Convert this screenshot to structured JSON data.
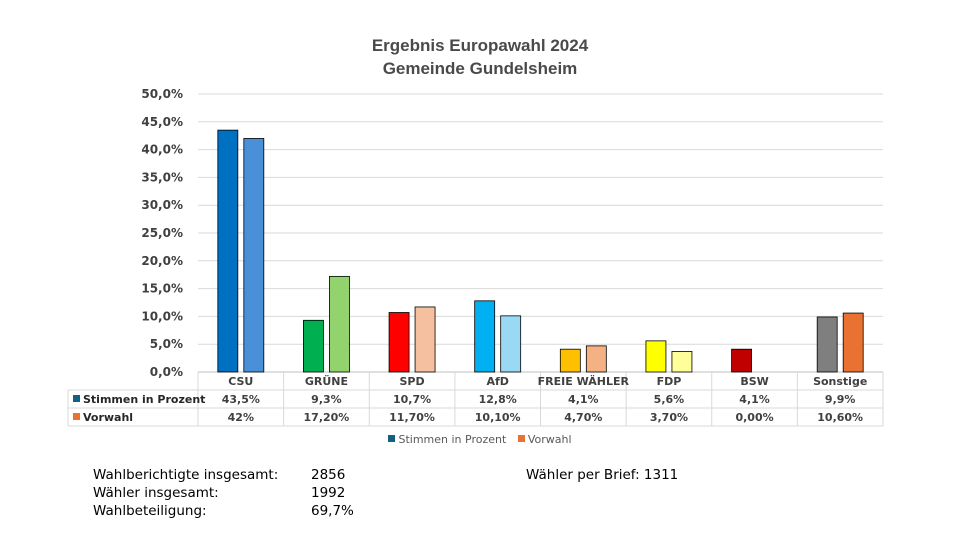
{
  "chart_data": {
    "type": "bar",
    "title": "Ergebnis Europawahl 2024",
    "subtitle": "Gemeinde Gundelsheim",
    "categories": [
      "CSU",
      "GRÜNE",
      "SPD",
      "AfD",
      "FREIE WÄHLER",
      "FDP",
      "BSW",
      "Sonstige"
    ],
    "series": [
      {
        "name": "Stimmen in Prozent",
        "values": [
          43.5,
          9.3,
          10.7,
          12.8,
          4.1,
          5.6,
          4.1,
          9.9
        ],
        "labels": [
          "43,5%",
          "9,3%",
          "10,7%",
          "12,8%",
          "4,1%",
          "5,6%",
          "4,1%",
          "9,9%"
        ],
        "colors": [
          "#0070c0",
          "#00b050",
          "#ff0000",
          "#00b0f0",
          "#ffc000",
          "#ffff00",
          "#c00000",
          "#7f7f7f"
        ]
      },
      {
        "name": "Vorwahl",
        "values": [
          42,
          17.2,
          11.7,
          10.1,
          4.7,
          3.7,
          0,
          10.6
        ],
        "labels": [
          "42%",
          "17,20%",
          "11,70%",
          "10,10%",
          "4,70%",
          "3,70%",
          "0,00%",
          "10,60%"
        ],
        "colors": [
          "#4a90d9",
          "#92d36e",
          "#f4c0a0",
          "#99d9f3",
          "#f4b183",
          "#ffff99",
          "#c00000",
          "#e97132"
        ]
      }
    ],
    "ylim": [
      0,
      50
    ],
    "yticks": [
      "0,0%",
      "5,0%",
      "10,0%",
      "15,0%",
      "20,0%",
      "25,0%",
      "30,0%",
      "35,0%",
      "40,0%",
      "45,0%",
      "50,0%"
    ],
    "legend": [
      {
        "label": "Stimmen in Prozent",
        "color": "#156082"
      },
      {
        "label": "Vorwahl",
        "color": "#e97132"
      }
    ],
    "legend_position": "bottom",
    "grid": true
  },
  "stats": {
    "wahlberechtigte_label": "Wahlberichtigte insgesamt:",
    "wahlberechtigte_value": "2856",
    "waehler_label": "Wähler insgesamt:",
    "waehler_value": "1992",
    "beteiligung_label": "Wahlbeteiligung:",
    "beteiligung_value": "69,7%",
    "brief_text": "Wähler per Brief: 1311"
  }
}
